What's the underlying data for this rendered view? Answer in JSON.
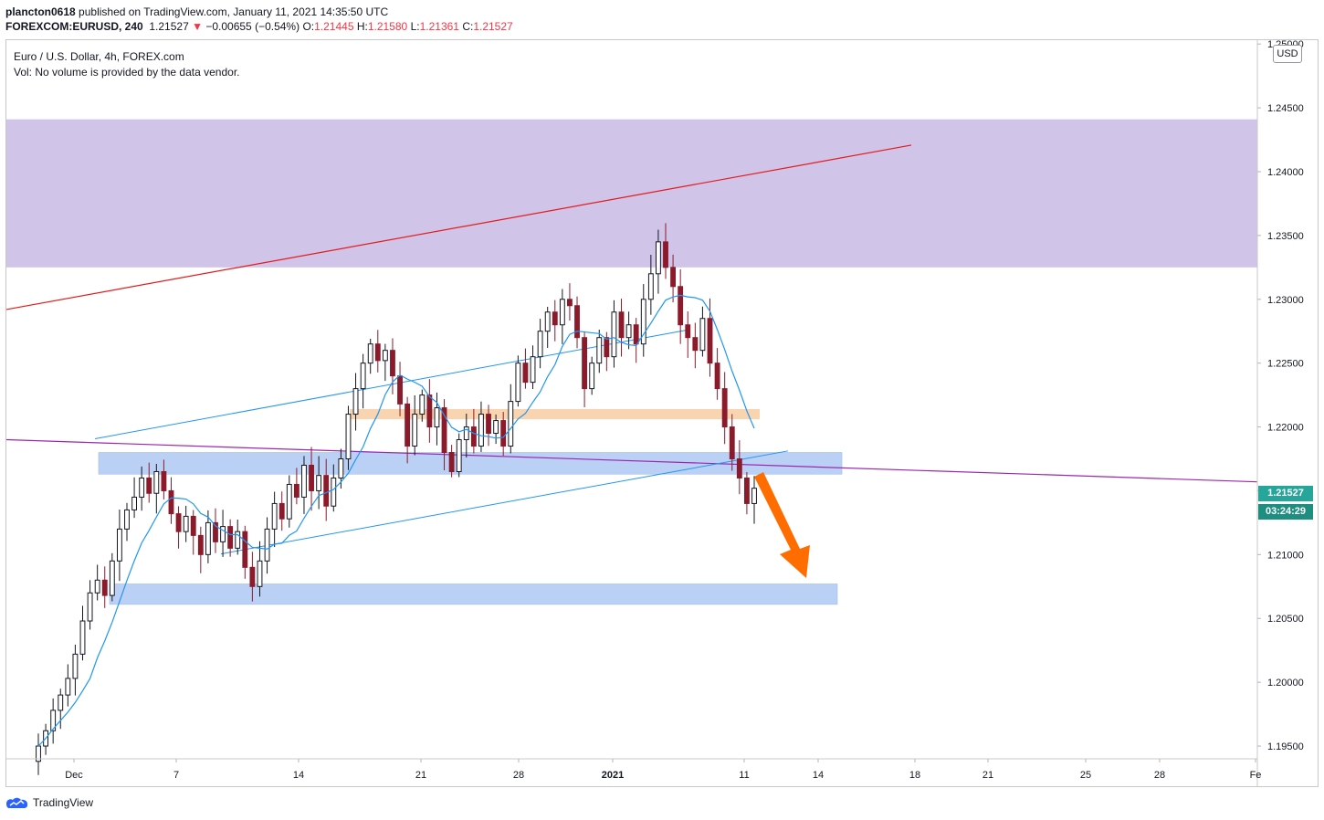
{
  "header": {
    "publisher": "plancton0618",
    "published_text": "published on TradingView.com, January 11, 2021 14:35:50 UTC",
    "symbol": "FOREXCOM:EURUSD, 240",
    "last": "1.21527",
    "change_arrow": "▼",
    "change": "−0.00655 (−0.54%)",
    "o_label": "O:",
    "o_value": "1.21445",
    "h_label": "H:",
    "h_value": "1.21580",
    "l_label": "L:",
    "l_value": "1.21361",
    "c_label": "C:",
    "c_value": "1.21527"
  },
  "legend": {
    "line1": "Euro / U.S. Dollar, 4h, FOREX.com",
    "line2": "Vol: No volume is provided by the data vendor."
  },
  "currency_button": "USD",
  "price_tag": "1.21527",
  "countdown_tag": "03:24:29",
  "branding": "TradingView",
  "colors": {
    "up": "#131722",
    "down": "#8b1a2b",
    "ma": "#2196f3",
    "channel": "#2196f3",
    "red_line": "#e31b1b",
    "purple_line": "#9c27b0",
    "supply_zone": "#d1c4e9",
    "blue_zone": "#bbd0f5",
    "orange_zone": "#f8d4b0",
    "arrow": "#ff6d00",
    "tag_bg": "#26a69a",
    "tag2_bg": "#1e8e80"
  },
  "chart_data": {
    "type": "candlestick",
    "title": "Euro / U.S. Dollar, 4h, FOREX.com",
    "x_ticks": [
      "Dec",
      "7",
      "14",
      "21",
      "28",
      "2021",
      "11",
      "14",
      "18",
      "21",
      "25",
      "28",
      "Fe"
    ],
    "y_ticks": [
      "1.19500",
      "1.20000",
      "1.20500",
      "1.21000",
      "1.21500",
      "1.22000",
      "1.22500",
      "1.23000",
      "1.23500",
      "1.24000",
      "1.24500",
      "1.25000"
    ],
    "ylim": [
      1.194,
      1.2503
    ],
    "closes": [
      1.195,
      1.1962,
      1.1978,
      1.199,
      1.2003,
      1.2022,
      1.2048,
      1.207,
      1.208,
      1.2068,
      1.2095,
      1.212,
      1.2135,
      1.2145,
      1.216,
      1.2148,
      1.2165,
      1.215,
      1.2132,
      1.2118,
      1.213,
      1.2115,
      1.21,
      1.2125,
      1.211,
      1.2122,
      1.2105,
      1.2118,
      1.209,
      1.2075,
      1.2095,
      1.212,
      1.214,
      1.2128,
      1.2155,
      1.2145,
      1.217,
      1.215,
      1.2162,
      1.2138,
      1.216,
      1.2175,
      1.221,
      1.223,
      1.225,
      1.2265,
      1.2252,
      1.226,
      1.224,
      1.2218,
      1.2185,
      1.221,
      1.2225,
      1.22,
      1.2215,
      1.218,
      1.2165,
      1.219,
      1.22,
      1.2185,
      1.221,
      1.2195,
      1.2205,
      1.2185,
      1.222,
      1.225,
      1.2235,
      1.2255,
      1.2275,
      1.229,
      1.228,
      1.23,
      1.2295,
      1.227,
      1.223,
      1.225,
      1.227,
      1.2255,
      1.229,
      1.227,
      1.228,
      1.2265,
      1.23,
      1.232,
      1.2345,
      1.2325,
      1.231,
      1.228,
      1.227,
      1.226,
      1.2285,
      1.225,
      1.223,
      1.22,
      1.2175,
      1.216,
      1.214,
      1.2152
    ],
    "series": [
      {
        "name": "",
        "kind": "moving-average"
      }
    ],
    "annotations": {
      "supply_zone": [
        1.2325,
        1.2441
      ],
      "upper_support_zone": [
        1.2163,
        1.218
      ],
      "lower_support_zone": [
        1.2061,
        1.2077
      ],
      "orange_zone": [
        1.2206,
        1.2214
      ],
      "red_trendline": [
        [
          0,
          1.2292
        ],
        [
          1.0,
          1.247
        ]
      ],
      "purple_trendline": [
        [
          0,
          1.219
        ],
        [
          1.0,
          1.2157
        ]
      ],
      "channel_upper": [
        [
          0,
          1.2178
        ],
        [
          1.0,
          1.2358
        ]
      ],
      "channel_lower": [
        [
          0,
          1.207
        ],
        [
          1.0,
          1.2248
        ]
      ],
      "projection_arrow": "down"
    },
    "grid": false,
    "legend_position": "top-left"
  }
}
